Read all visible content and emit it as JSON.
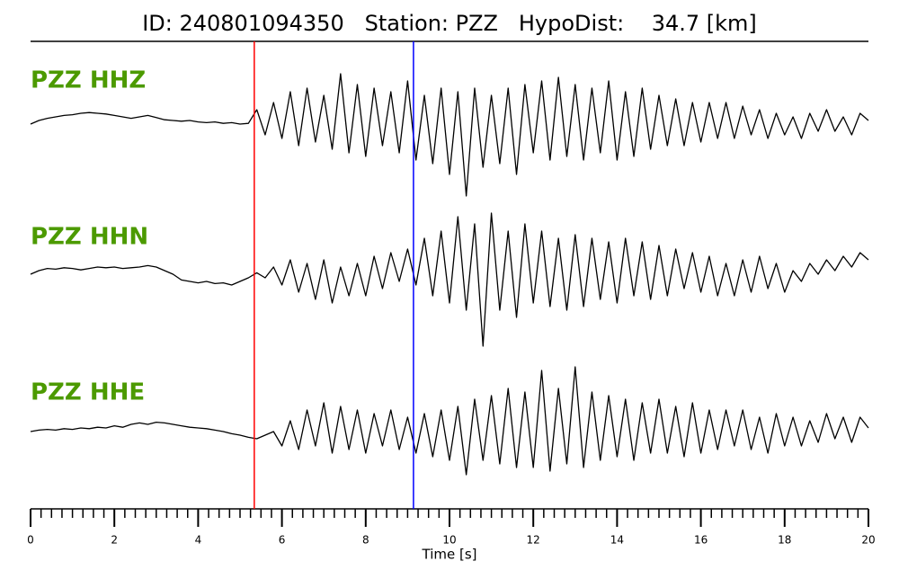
{
  "chart_data": {
    "type": "seismogram",
    "title": "ID: 240801094350   Station: PZZ   HypoDist:    34.7 [km]",
    "xlabel": "Time [s]",
    "xlim": [
      0,
      20
    ],
    "xticks": [
      0,
      2,
      4,
      6,
      8,
      10,
      12,
      14,
      16,
      18,
      20
    ],
    "xticks_minor": [
      0,
      0.25,
      0.5,
      0.75,
      1,
      1.25,
      1.5,
      1.75,
      2,
      2.25,
      2.5,
      2.75,
      3,
      3.25,
      3.5,
      3.75,
      4,
      4.25,
      4.5,
      4.75,
      5,
      5.25,
      5.5,
      5.75,
      6,
      6.25,
      6.5,
      6.75,
      7,
      7.25,
      7.5,
      7.75,
      8,
      8.25,
      8.5,
      8.75,
      9,
      9.25,
      9.5,
      9.75,
      10,
      10.25,
      10.5,
      10.75,
      11,
      11.25,
      11.5,
      11.75,
      12,
      12.25,
      12.5,
      12.75,
      13,
      13.25,
      13.5,
      13.75,
      14,
      14.25,
      14.5,
      14.75,
      15,
      15.25,
      15.5,
      15.75,
      16,
      16.25,
      16.5,
      16.75,
      17,
      17.25,
      17.5,
      17.75,
      18,
      18.25,
      18.5,
      18.75,
      19,
      19.25,
      19.5,
      19.75,
      20
    ],
    "label_color": "#4c9a00",
    "ylim": [
      -1,
      1
    ],
    "x": [
      0,
      0.2,
      0.4,
      0.6,
      0.8,
      1,
      1.2,
      1.4,
      1.6,
      1.8,
      2,
      2.2,
      2.4,
      2.6,
      2.8,
      3,
      3.2,
      3.4,
      3.6,
      3.8,
      4,
      4.2,
      4.4,
      4.6,
      4.8,
      5,
      5.2,
      5.4,
      5.6,
      5.8,
      6,
      6.2,
      6.4,
      6.6,
      6.8,
      7,
      7.2,
      7.4,
      7.6,
      7.8,
      8,
      8.2,
      8.4,
      8.6,
      8.8,
      9,
      9.2,
      9.4,
      9.6,
      9.8,
      10,
      10.2,
      10.4,
      10.6,
      10.8,
      11,
      11.2,
      11.4,
      11.6,
      11.8,
      12,
      12.2,
      12.4,
      12.6,
      12.8,
      13,
      13.2,
      13.4,
      13.6,
      13.8,
      14,
      14.2,
      14.4,
      14.6,
      14.8,
      15,
      15.2,
      15.4,
      15.6,
      15.8,
      16,
      16.2,
      16.4,
      16.6,
      16.8,
      17,
      17.2,
      17.4,
      17.6,
      17.8,
      18,
      18.2,
      18.4,
      18.6,
      18.8,
      19,
      19.2,
      19.4,
      19.6,
      19.8,
      20
    ],
    "series": [
      {
        "name": "PZZ HHZ",
        "color": "#000000",
        "values": [
          0,
          0.05,
          0.08,
          0.1,
          0.12,
          0.13,
          0.15,
          0.16,
          0.15,
          0.14,
          0.12,
          0.1,
          0.08,
          0.1,
          0.12,
          0.09,
          0.06,
          0.05,
          0.04,
          0.05,
          0.03,
          0.02,
          0.03,
          0.01,
          0.02,
          0.0,
          0.01,
          0.2,
          -0.15,
          0.3,
          -0.2,
          0.45,
          -0.3,
          0.5,
          -0.25,
          0.4,
          -0.35,
          0.7,
          -0.4,
          0.55,
          -0.45,
          0.5,
          -0.3,
          0.45,
          -0.4,
          0.6,
          -0.5,
          0.4,
          -0.55,
          0.5,
          -0.7,
          0.45,
          -1.0,
          0.5,
          -0.6,
          0.4,
          -0.55,
          0.5,
          -0.7,
          0.55,
          -0.4,
          0.6,
          -0.5,
          0.65,
          -0.45,
          0.55,
          -0.5,
          0.5,
          -0.4,
          0.6,
          -0.5,
          0.45,
          -0.45,
          0.5,
          -0.35,
          0.4,
          -0.3,
          0.35,
          -0.3,
          0.3,
          -0.25,
          0.3,
          -0.2,
          0.3,
          -0.2,
          0.25,
          -0.15,
          0.2,
          -0.2,
          0.15,
          -0.15,
          0.1,
          -0.2,
          0.15,
          -0.1,
          0.2,
          -0.1,
          0.1,
          -0.15,
          0.15,
          0.05
        ]
      },
      {
        "name": "PZZ HHN",
        "color": "#000000",
        "values": [
          0,
          0.05,
          0.08,
          0.07,
          0.09,
          0.08,
          0.06,
          0.08,
          0.1,
          0.09,
          0.1,
          0.08,
          0.09,
          0.1,
          0.12,
          0.1,
          0.05,
          0.0,
          -0.08,
          -0.1,
          -0.12,
          -0.1,
          -0.13,
          -0.12,
          -0.15,
          -0.1,
          -0.05,
          0.02,
          -0.05,
          0.1,
          -0.15,
          0.2,
          -0.25,
          0.15,
          -0.35,
          0.2,
          -0.4,
          0.1,
          -0.3,
          0.15,
          -0.3,
          0.25,
          -0.2,
          0.3,
          -0.1,
          0.35,
          -0.15,
          0.5,
          -0.3,
          0.6,
          -0.4,
          0.8,
          -0.5,
          0.7,
          -1.0,
          0.85,
          -0.5,
          0.6,
          -0.6,
          0.7,
          -0.4,
          0.6,
          -0.45,
          0.5,
          -0.5,
          0.55,
          -0.45,
          0.5,
          -0.35,
          0.45,
          -0.4,
          0.5,
          -0.3,
          0.45,
          -0.35,
          0.4,
          -0.3,
          0.35,
          -0.2,
          0.3,
          -0.25,
          0.25,
          -0.3,
          0.15,
          -0.3,
          0.2,
          -0.25,
          0.25,
          -0.2,
          0.15,
          -0.25,
          0.05,
          -0.1,
          0.15,
          0.0,
          0.2,
          0.05,
          0.25,
          0.1,
          0.3,
          0.2
        ]
      },
      {
        "name": "PZZ HHE",
        "color": "#000000",
        "values": [
          0,
          0.02,
          0.03,
          0.02,
          0.04,
          0.03,
          0.05,
          0.04,
          0.06,
          0.05,
          0.08,
          0.06,
          0.1,
          0.12,
          0.1,
          0.13,
          0.12,
          0.1,
          0.08,
          0.06,
          0.05,
          0.04,
          0.02,
          0.0,
          -0.03,
          -0.05,
          -0.08,
          -0.1,
          -0.05,
          0.0,
          -0.2,
          0.15,
          -0.25,
          0.3,
          -0.2,
          0.4,
          -0.3,
          0.35,
          -0.25,
          0.3,
          -0.3,
          0.25,
          -0.2,
          0.3,
          -0.25,
          0.2,
          -0.3,
          0.25,
          -0.35,
          0.3,
          -0.4,
          0.35,
          -0.6,
          0.45,
          -0.4,
          0.5,
          -0.45,
          0.6,
          -0.5,
          0.55,
          -0.5,
          0.85,
          -0.55,
          0.6,
          -0.45,
          0.9,
          -0.5,
          0.55,
          -0.4,
          0.5,
          -0.35,
          0.45,
          -0.4,
          0.4,
          -0.3,
          0.45,
          -0.3,
          0.35,
          -0.35,
          0.4,
          -0.3,
          0.3,
          -0.25,
          0.3,
          -0.2,
          0.3,
          -0.25,
          0.2,
          -0.3,
          0.25,
          -0.2,
          0.2,
          -0.2,
          0.15,
          -0.15,
          0.25,
          -0.1,
          0.2,
          -0.15,
          0.2,
          0.05
        ]
      }
    ],
    "picks": [
      {
        "time": 5.34,
        "color": "#ff0000"
      },
      {
        "time": 9.14,
        "color": "#0000ff"
      }
    ]
  }
}
